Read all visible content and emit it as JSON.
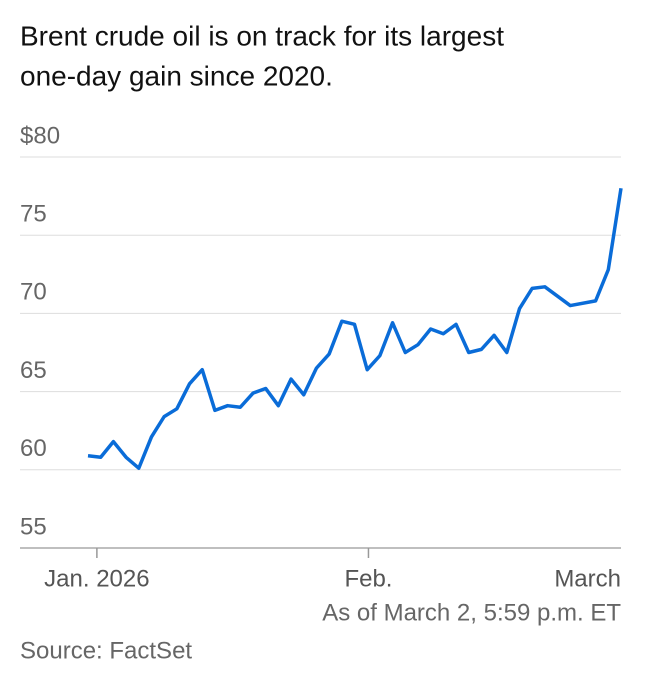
{
  "chart_data": {
    "type": "line",
    "title": "Brent crude oil is on track for its largest one-day gain since 2020.",
    "subtitle": "As of March 2, 5:59 p.m. ET",
    "source": "Source: FactSet",
    "x": [
      0,
      1,
      2,
      3,
      4,
      5,
      6,
      7,
      8,
      9,
      10,
      11,
      12,
      13,
      14,
      15,
      16,
      17,
      18,
      19,
      20,
      21,
      22,
      23,
      24,
      25,
      26,
      27,
      28,
      29,
      30,
      31,
      32,
      33,
      34,
      35,
      36,
      37,
      38,
      40,
      41,
      42
    ],
    "series": [
      {
        "color": "#0a6cd8",
        "values": [
          60.9,
          60.8,
          61.8,
          60.8,
          60.1,
          62.1,
          63.4,
          63.9,
          65.5,
          66.4,
          63.8,
          64.1,
          64.0,
          64.9,
          65.2,
          64.1,
          65.8,
          64.8,
          66.5,
          67.4,
          69.5,
          69.3,
          66.4,
          67.3,
          69.4,
          67.5,
          68.0,
          69.0,
          68.7,
          69.3,
          67.5,
          67.7,
          68.6,
          67.5,
          70.3,
          71.6,
          71.7,
          71.1,
          70.5,
          70.8,
          72.8,
          78.0
        ]
      }
    ],
    "xlim": [
      0,
      42
    ],
    "xticks": [
      {
        "value": 0.7,
        "label": "Jan. 2026"
      },
      {
        "value": 22.1,
        "label": "Feb."
      },
      {
        "value": 42,
        "label": "March"
      }
    ],
    "ylim": [
      55,
      80
    ],
    "yticks": [
      55,
      60,
      65,
      70,
      75,
      {
        "value": 80,
        "label": "$80"
      }
    ],
    "grid": true
  }
}
